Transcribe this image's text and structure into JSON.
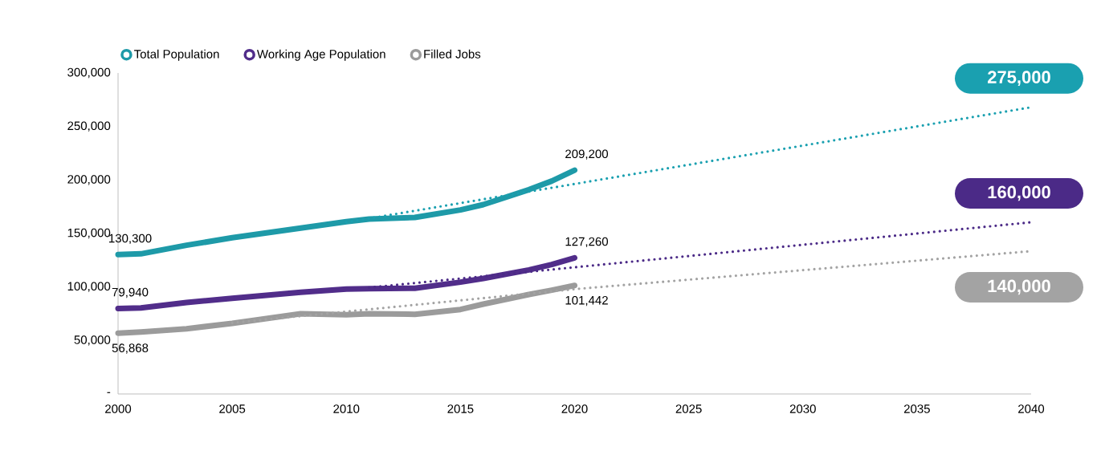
{
  "chart_data": {
    "type": "line",
    "x": [
      2000,
      2001,
      2003,
      2005,
      2008,
      2010,
      2011,
      2013,
      2015,
      2016,
      2018,
      2019,
      2020
    ],
    "series": [
      {
        "name": "Total Population",
        "color": "#1e9aa8",
        "values": [
          130300,
          131000,
          139000,
          146000,
          155000,
          161000,
          163500,
          165000,
          172000,
          177000,
          191000,
          199000,
          209200
        ],
        "value_labels": [
          "130,300",
          null,
          null,
          null,
          null,
          null,
          null,
          null,
          null,
          null,
          null,
          null,
          "209,200"
        ]
      },
      {
        "name": "Working Age Population",
        "color": "#512d8a",
        "values": [
          79940,
          80500,
          85500,
          89500,
          95000,
          98000,
          98500,
          98800,
          104500,
          108000,
          116000,
          121000,
          127260
        ],
        "value_labels": [
          "79,940",
          null,
          null,
          null,
          null,
          null,
          null,
          null,
          null,
          null,
          null,
          null,
          "127,260"
        ]
      },
      {
        "name": "Filled Jobs",
        "color": "#9b9b9b",
        "values": [
          56868,
          58000,
          61000,
          66000,
          75000,
          74000,
          75000,
          74500,
          79000,
          84000,
          93000,
          97000,
          101442
        ],
        "value_labels": [
          "56,868",
          null,
          null,
          null,
          null,
          null,
          null,
          null,
          null,
          null,
          null,
          null,
          "101,442"
        ]
      },
      {
        "color": "#1aa0b0",
        "line_style": "dotted",
        "x": [
          2010,
          2040
        ],
        "values": [
          160500,
          268000
        ]
      },
      {
        "color": "#4b2a87",
        "line_style": "dotted",
        "x": [
          2011,
          2040
        ],
        "values": [
          99500,
          160500
        ]
      },
      {
        "color": "#a3a3a3",
        "line_style": "dotted",
        "x": [
          2005,
          2020,
          2040
        ],
        "values": [
          66500,
          98000,
          133500
        ]
      }
    ],
    "xlim": [
      2000,
      2040
    ],
    "ylim": [
      0,
      300000
    ],
    "xticks": [
      2000,
      2005,
      2010,
      2015,
      2020,
      2025,
      2030,
      2035,
      2040
    ],
    "yticks": [
      {
        "value": 0,
        "label": "-"
      },
      {
        "value": 50000,
        "label": "50,000"
      },
      {
        "value": 100000,
        "label": "100,000"
      },
      {
        "value": 150000,
        "label": "150,000"
      },
      {
        "value": 200000,
        "label": "200,000"
      },
      {
        "value": 250000,
        "label": "250,000"
      },
      {
        "value": 300000,
        "label": "300,000"
      }
    ],
    "annotations": [
      "275,000",
      "160,000",
      "140,000"
    ],
    "legend": "top",
    "line_style": "solid",
    "marker": "none"
  }
}
